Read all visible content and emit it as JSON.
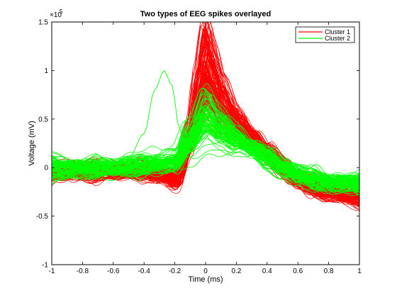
{
  "chart_data": {
    "type": "line",
    "title": "Two types of EEG spikes overlayed",
    "xlabel": "Time (ms)",
    "ylabel": "Voltage (mV)",
    "y_exponent_label": "×10",
    "y_exponent": "5",
    "xlim": [
      -1,
      1
    ],
    "ylim": [
      -1,
      1.5
    ],
    "xticks": [
      -1,
      -0.8,
      -0.6,
      -0.4,
      -0.2,
      0,
      0.2,
      0.4,
      0.6,
      0.8,
      1
    ],
    "xtick_labels": [
      "-1",
      "-0.8",
      "-0.6",
      "-0.4",
      "-0.2",
      "0",
      "0.2",
      "0.4",
      "0.6",
      "0.8",
      "1"
    ],
    "yticks": [
      -1,
      -0.5,
      0,
      0.5,
      1,
      1.5
    ],
    "ytick_labels": [
      "-1",
      "-0.5",
      "0",
      "0.5",
      "1",
      "1.5"
    ],
    "grid": false,
    "legend_position": "top-right",
    "series": [
      {
        "name": "Cluster 1",
        "color": "#ff0000",
        "waveform_template": {
          "x": [
            -1,
            -0.8,
            -0.6,
            -0.4,
            -0.3,
            -0.2,
            -0.1,
            -0.05,
            0,
            0.05,
            0.1,
            0.2,
            0.3,
            0.4,
            0.5,
            0.6,
            0.7,
            0.8,
            0.9,
            1
          ],
          "y": [
            -0.05,
            -0.04,
            -0.03,
            -0.04,
            -0.08,
            -0.12,
            0.3,
            0.7,
            1.05,
            0.85,
            0.65,
            0.45,
            0.3,
            0.15,
            0.0,
            -0.12,
            -0.2,
            -0.25,
            -0.28,
            -0.3
          ]
        }
      },
      {
        "name": "Cluster 2",
        "color": "#00ff00",
        "waveform_template": {
          "x": [
            -1,
            -0.8,
            -0.6,
            -0.4,
            -0.3,
            -0.2,
            -0.1,
            0,
            0.1,
            0.2,
            0.3,
            0.4,
            0.5,
            0.6,
            0.7,
            0.8,
            0.9,
            1
          ],
          "y": [
            0.0,
            0.0,
            0.0,
            0.02,
            0.04,
            0.06,
            0.3,
            0.55,
            0.42,
            0.3,
            0.2,
            0.1,
            0.0,
            -0.08,
            -0.12,
            -0.15,
            -0.15,
            -0.15
          ]
        },
        "outlier_trace": {
          "x": [
            -1,
            -0.8,
            -0.6,
            -0.5,
            -0.4,
            -0.33,
            -0.27,
            -0.22,
            -0.17,
            -0.12,
            -0.06,
            0,
            0.1,
            0.2,
            0.3,
            0.4,
            0.5,
            0.6,
            0.8,
            1
          ],
          "y": [
            0.05,
            0.05,
            0.05,
            0.1,
            0.35,
            0.8,
            1.0,
            0.85,
            0.4,
            0.18,
            0.3,
            0.55,
            0.42,
            0.3,
            0.2,
            0.1,
            0.0,
            -0.08,
            -0.12,
            -0.15
          ]
        }
      }
    ]
  }
}
